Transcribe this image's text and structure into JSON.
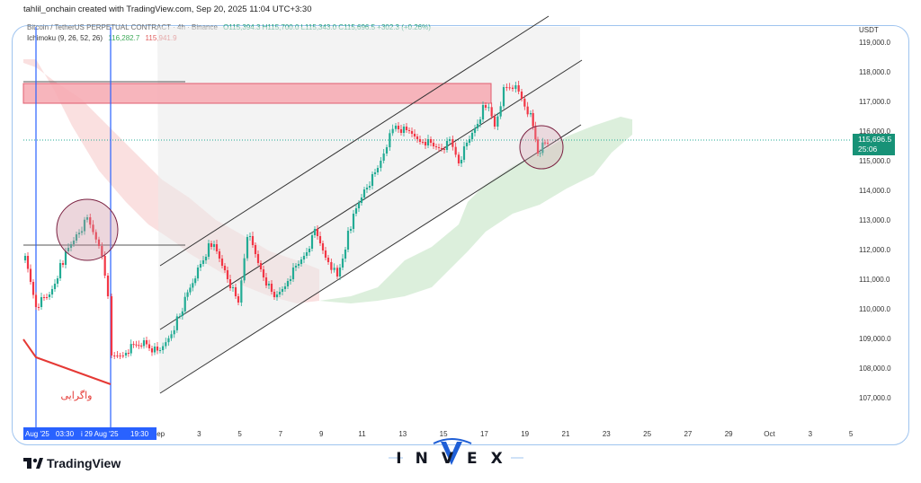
{
  "header": {
    "credit": "tahlil_onchain created with TradingView.com, Sep 20, 2025 11:04 UTC+3:30"
  },
  "legend": {
    "symbol": "Bitcoin / TetherUS PERPETUAL CONTRACT · 4h · Binance",
    "ohlc": "O115,394.3 H115,700.0 L115,343.0 C115,696.5 +302.3 (+0.26%)",
    "indicator": "Ichimoku (9, 26, 52, 26)",
    "indicator_val1": "116,282.7",
    "indicator_val2": "115,941.9"
  },
  "price_axis": {
    "currency": "USDT",
    "ticks": [
      "119,000.0",
      "118,000.0",
      "117,000.0",
      "116,000.0",
      "115,000.0",
      "114,000.0",
      "113,000.0",
      "112,000.0",
      "111,000.0",
      "110,000.0",
      "109,000.0",
      "108,000.0",
      "107,000.0"
    ],
    "last_price": "115,696.5",
    "countdown": "25:06"
  },
  "time_axis": {
    "ticks": [
      "Sep",
      "3",
      "5",
      "7",
      "9",
      "11",
      "13",
      "15",
      "17",
      "19",
      "21",
      "23",
      "25",
      "27",
      "29",
      "Oct",
      "3",
      "5"
    ],
    "highlight_left": "Aug '25",
    "highlight_mid": "03:30",
    "highlight_right": "i 29 Aug '25",
    "highlight_time": "19:30"
  },
  "annotations": {
    "divergence_label": "واگرایی"
  },
  "colors": {
    "up": "#22ab94",
    "down": "#f23645",
    "channel": "#2a2a2a",
    "cloud_green": "#c8e6c9",
    "cloud_red": "#f8d0d0",
    "resistance_zone": "#f4a0a8",
    "price_tag": "#179277"
  },
  "branding": {
    "tradingview": "TradingView",
    "invex": "INVEX"
  }
}
